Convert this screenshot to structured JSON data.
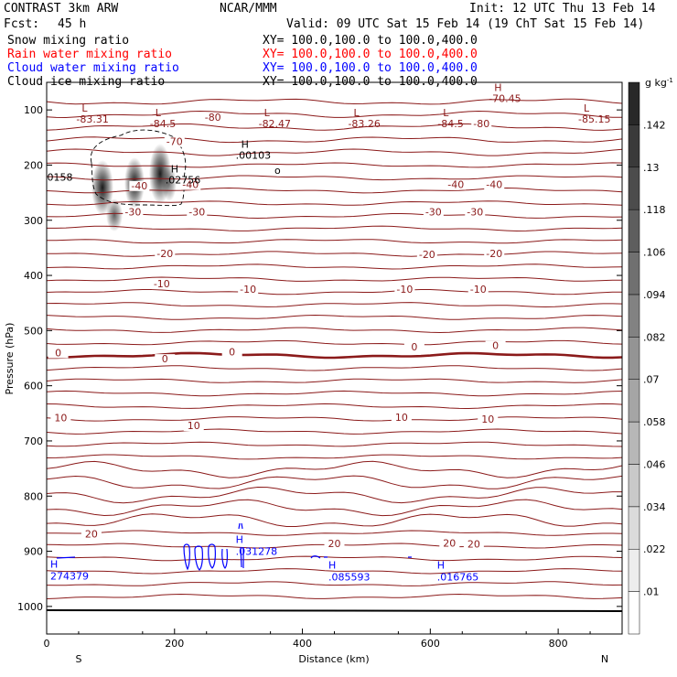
{
  "header": {
    "title": "CONTRAST  3km ARW",
    "org": "NCAR/MMM",
    "init": "Init: 12 UTC Thu 13 Feb 14",
    "fcst_label": "Fcst:",
    "fcst_value": "45 h",
    "valid": "Valid: 09 UTC Sat 15 Feb 14 (19 ChT Sat 15 Feb 14)"
  },
  "fields": [
    {
      "name": "Snow mixing ratio",
      "xy": "XY= 100.0,100.0 to 100.0,400.0",
      "color": "#000000"
    },
    {
      "name": "Rain water mixing ratio",
      "xy": "XY= 100.0,100.0 to 100.0,400.0",
      "color": "#ff0000"
    },
    {
      "name": "Cloud water mixing ratio",
      "xy": "XY= 100.0,100.0 to 100.0,400.0",
      "color": "#0000ff"
    },
    {
      "name": "Cloud ice mixing ratio",
      "xy": "XY= 100.0,100.0 to 100.0,400.0",
      "color": "#000000"
    }
  ],
  "chart_data": {
    "type": "contour",
    "xlabel": "Distance (km)",
    "ylabel": "Pressure (hPa)",
    "xlim": [
      0,
      900
    ],
    "ylim": [
      1050,
      50
    ],
    "x_ticks": [
      0,
      200,
      400,
      600,
      800
    ],
    "y_ticks": [
      100,
      200,
      300,
      400,
      500,
      600,
      700,
      800,
      900,
      1000
    ],
    "x_end_labels": {
      "left": "S",
      "right": "N"
    },
    "colorbar": {
      "unit": "g kg",
      "unit_exp": "-1",
      "levels": [
        ".01",
        ".022",
        ".034",
        ".046",
        ".058",
        ".07",
        ".082",
        ".094",
        ".106",
        ".118",
        ".13",
        ".142"
      ]
    },
    "temperature_contour_labels": [
      {
        "text": "-80",
        "x": 260,
        "p": 118
      },
      {
        "text": "-80",
        "x": 680,
        "p": 130
      },
      {
        "text": "-70",
        "x": 200,
        "p": 162
      },
      {
        "text": "-40",
        "x": 145,
        "p": 242
      },
      {
        "text": "-40",
        "x": 225,
        "p": 240
      },
      {
        "text": "-40",
        "x": 640,
        "p": 240
      },
      {
        "text": "-40",
        "x": 700,
        "p": 240
      },
      {
        "text": "-30",
        "x": 135,
        "p": 290
      },
      {
        "text": "-30",
        "x": 235,
        "p": 290
      },
      {
        "text": "-30",
        "x": 605,
        "p": 290
      },
      {
        "text": "-30",
        "x": 670,
        "p": 290
      },
      {
        "text": "-20",
        "x": 185,
        "p": 365
      },
      {
        "text": "-20",
        "x": 595,
        "p": 367
      },
      {
        "text": "-20",
        "x": 700,
        "p": 365
      },
      {
        "text": "-10",
        "x": 180,
        "p": 420
      },
      {
        "text": "-10",
        "x": 315,
        "p": 430
      },
      {
        "text": "-10",
        "x": 560,
        "p": 430
      },
      {
        "text": "-10",
        "x": 675,
        "p": 430
      },
      {
        "text": "0",
        "x": 18,
        "p": 545
      },
      {
        "text": "0",
        "x": 185,
        "p": 556
      },
      {
        "text": "0",
        "x": 290,
        "p": 543
      },
      {
        "text": "0",
        "x": 575,
        "p": 534
      },
      {
        "text": "0",
        "x": 702,
        "p": 532
      },
      {
        "text": "10",
        "x": 22,
        "p": 663
      },
      {
        "text": "10",
        "x": 230,
        "p": 677
      },
      {
        "text": "10",
        "x": 555,
        "p": 662
      },
      {
        "text": "10",
        "x": 690,
        "p": 665
      },
      {
        "text": "20",
        "x": 70,
        "p": 873
      },
      {
        "text": "20",
        "x": 450,
        "p": 891
      },
      {
        "text": "20",
        "x": 630,
        "p": 890
      },
      {
        "text": "20",
        "x": 668,
        "p": 892
      }
    ],
    "extrema_labels": [
      {
        "mark": "L",
        "value": "-83.31",
        "x": 75,
        "p": 110
      },
      {
        "mark": "L",
        "value": "-84.5",
        "x": 190,
        "p": 118
      },
      {
        "mark": "L",
        "value": "-82.47",
        "x": 360,
        "p": 118
      },
      {
        "mark": "L",
        "value": "-83.26",
        "x": 500,
        "p": 118
      },
      {
        "mark": "L",
        "value": "-84.5",
        "x": 640,
        "p": 118
      },
      {
        "mark": "H",
        "value": "-70.45",
        "x": 720,
        "p": 72
      },
      {
        "mark": "L",
        "value": "-85.15",
        "x": 860,
        "p": 110
      }
    ],
    "snow_labels": [
      {
        "mark": "H",
        "value": ".00103",
        "x": 310,
        "p": 182
      },
      {
        "mark": "H",
        "value": ".02756",
        "x": 200,
        "p": 227
      },
      {
        "mark": "",
        "value": "0158",
        "x": 15,
        "p": 222
      }
    ],
    "cloud_water_labels": [
      {
        "mark": "H",
        "value": ".031278",
        "x": 310,
        "p": 898
      },
      {
        "mark": "H",
        "value": "274379",
        "x": 20,
        "p": 943
      },
      {
        "mark": "H",
        "value": ".085593",
        "x": 455,
        "p": 945
      },
      {
        "mark": "H",
        "value": ".016765",
        "x": 625,
        "p": 945
      }
    ]
  }
}
